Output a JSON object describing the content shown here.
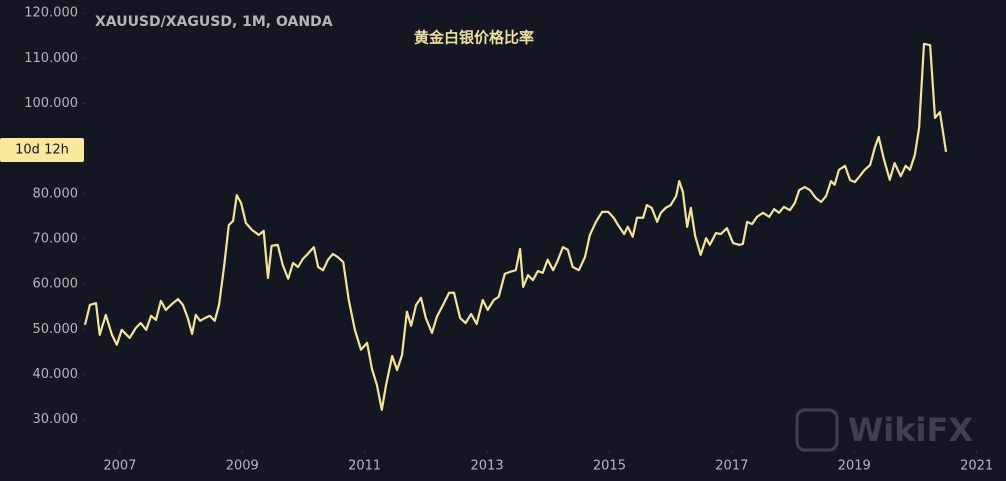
{
  "chart_data": {
    "type": "line",
    "title": "黄金白银价格比率",
    "subtitle": "XAUUSD/XAGUSD, 1M, OANDA",
    "countdown_label": "10d 12h",
    "watermark": "WikiFX",
    "color": "#f3e49a",
    "x": [
      2006.43,
      2006.51,
      2006.61,
      2006.67,
      2006.77,
      2006.87,
      2006.95,
      2007.03,
      2007.16,
      2007.26,
      2007.34,
      2007.43,
      2007.51,
      2007.59,
      2007.67,
      2007.75,
      2007.85,
      2007.95,
      2008.03,
      2008.11,
      2008.18,
      2008.24,
      2008.31,
      2008.39,
      2008.47,
      2008.55,
      2008.62,
      2008.7,
      2008.78,
      2008.85,
      2008.91,
      2008.98,
      2009.06,
      2009.16,
      2009.27,
      2009.35,
      2009.42,
      2009.48,
      2009.58,
      2009.66,
      2009.75,
      2009.83,
      2009.91,
      2009.99,
      2010.07,
      2010.17,
      2010.24,
      2010.32,
      2010.4,
      2010.48,
      2010.56,
      2010.65,
      2010.74,
      2010.84,
      2010.94,
      2011.04,
      2011.12,
      2011.2,
      2011.28,
      2011.35,
      2011.45,
      2011.53,
      2011.61,
      2011.69,
      2011.76,
      2011.84,
      2011.92,
      2012.0,
      2012.1,
      2012.18,
      2012.28,
      2012.38,
      2012.46,
      2012.56,
      2012.65,
      2012.74,
      2012.83,
      2012.93,
      2013.01,
      2013.11,
      2013.19,
      2013.29,
      2013.37,
      2013.47,
      2013.54,
      2013.59,
      2013.67,
      2013.75,
      2013.83,
      2013.91,
      2013.99,
      2014.08,
      2014.16,
      2014.24,
      2014.32,
      2014.4,
      2014.5,
      2014.6,
      2014.68,
      2014.78,
      2014.88,
      2014.98,
      2015.07,
      2015.15,
      2015.24,
      2015.3,
      2015.38,
      2015.45,
      2015.55,
      2015.61,
      2015.69,
      2015.78,
      2015.84,
      2015.92,
      2016.0,
      2016.09,
      2016.14,
      2016.2,
      2016.27,
      2016.33,
      2016.4,
      2016.49,
      2016.58,
      2016.64,
      2016.74,
      2016.82,
      2016.92,
      2017.02,
      2017.12,
      2017.18,
      2017.25,
      2017.33,
      2017.41,
      2017.51,
      2017.61,
      2017.69,
      2017.77,
      2017.85,
      2017.95,
      2018.03,
      2018.1,
      2018.19,
      2018.28,
      2018.37,
      2018.46,
      2018.54,
      2018.62,
      2018.68,
      2018.75,
      2018.85,
      2018.93,
      2019.01,
      2019.09,
      2019.17,
      2019.26,
      2019.34,
      2019.4,
      2019.48,
      2019.58,
      2019.66,
      2019.76,
      2019.84,
      2019.91,
      2019.99,
      2020.06,
      2020.14,
      2020.24,
      2020.32,
      2020.4,
      2020.5
    ],
    "values": [
      51.0,
      55.4,
      55.8,
      48.8,
      53.2,
      48.8,
      46.6,
      49.9,
      48.1,
      50.3,
      51.4,
      49.9,
      53.0,
      52.1,
      56.3,
      54.3,
      55.6,
      56.7,
      55.4,
      52.5,
      49.0,
      53.2,
      51.9,
      52.5,
      53.0,
      51.9,
      55.4,
      63.6,
      73.1,
      74.0,
      79.7,
      78.0,
      73.5,
      72.0,
      70.9,
      71.8,
      61.4,
      68.5,
      68.7,
      64.3,
      61.2,
      64.7,
      63.8,
      65.6,
      66.7,
      68.2,
      63.8,
      63.1,
      65.4,
      66.7,
      66.0,
      64.9,
      56.5,
      49.9,
      45.5,
      47.0,
      41.2,
      37.7,
      32.2,
      37.7,
      44.1,
      41.0,
      44.3,
      53.9,
      50.8,
      55.4,
      57.0,
      52.5,
      49.2,
      52.8,
      55.4,
      58.1,
      58.1,
      52.5,
      51.4,
      53.4,
      51.2,
      56.5,
      54.3,
      56.5,
      57.2,
      62.3,
      62.7,
      63.1,
      67.8,
      59.4,
      62.0,
      60.9,
      62.9,
      62.5,
      65.4,
      63.1,
      65.4,
      68.2,
      67.6,
      63.8,
      63.1,
      66.0,
      70.9,
      73.8,
      76.0,
      76.0,
      74.7,
      72.9,
      71.1,
      72.7,
      70.5,
      74.7,
      74.7,
      77.5,
      76.9,
      73.8,
      75.8,
      76.9,
      77.5,
      79.5,
      82.8,
      80.4,
      72.7,
      76.9,
      70.7,
      66.5,
      70.2,
      68.7,
      71.3,
      71.1,
      72.4,
      69.1,
      68.7,
      68.9,
      73.8,
      73.3,
      74.9,
      75.8,
      74.9,
      76.6,
      75.8,
      77.1,
      76.4,
      78.0,
      80.8,
      81.5,
      80.8,
      79.1,
      78.2,
      79.5,
      82.8,
      82.0,
      85.3,
      86.2,
      83.1,
      82.6,
      83.9,
      85.3,
      86.4,
      90.4,
      92.6,
      87.9,
      83.1,
      86.8,
      83.9,
      86.2,
      85.3,
      88.6,
      94.6,
      113.2,
      112.9,
      96.8,
      98.1,
      89.3
    ],
    "xlim": [
      2006.43,
      2021.48
    ],
    "ylim": [
      23.3,
      122.9
    ],
    "xticks": [
      2007,
      2009,
      2011,
      2013,
      2015,
      2017,
      2019,
      2021
    ],
    "yticks": [
      {
        "value": 30,
        "label": "30.000"
      },
      {
        "value": 40,
        "label": "40.000"
      },
      {
        "value": 50,
        "label": "50.000"
      },
      {
        "value": 60,
        "label": "60.000"
      },
      {
        "value": 70,
        "label": "70.000"
      },
      {
        "value": 80,
        "label": "80.000"
      },
      {
        "value": 100,
        "label": "100.000"
      },
      {
        "value": 110,
        "label": "110.000"
      },
      {
        "value": 120,
        "label": "120.000"
      }
    ]
  }
}
